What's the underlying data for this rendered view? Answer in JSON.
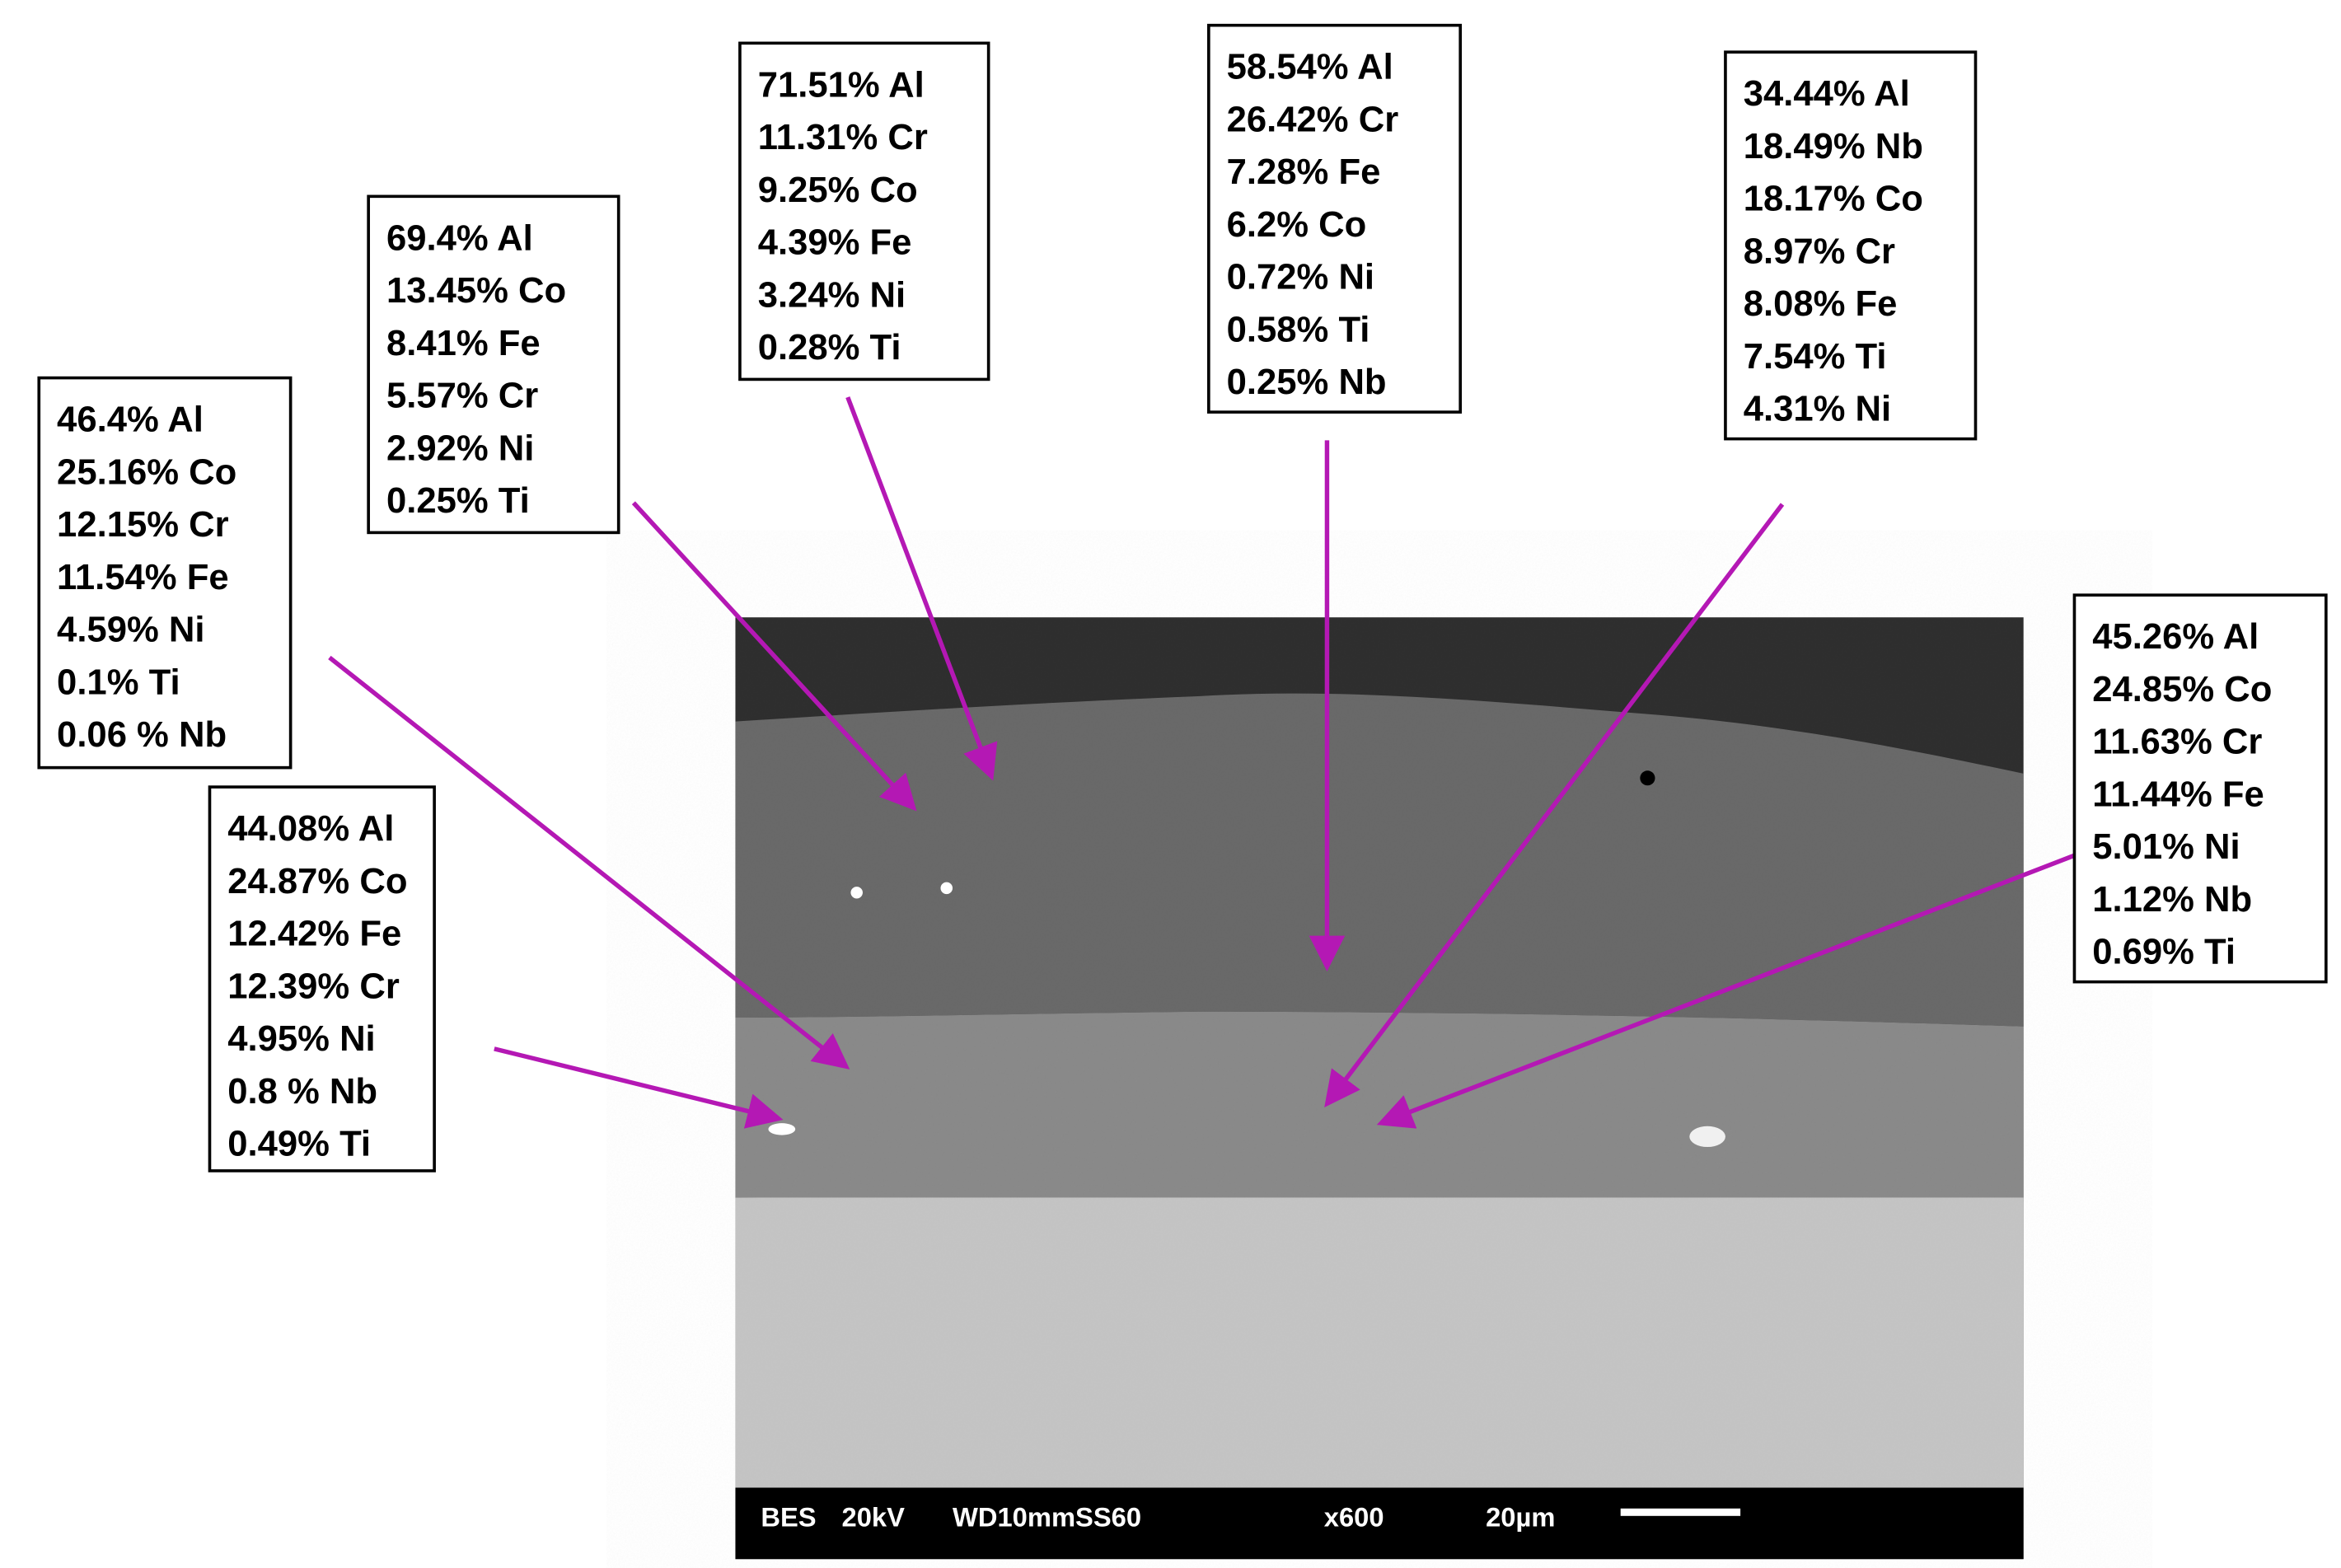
{
  "annotations": [
    {
      "lines": [
        "46.4% Al",
        "25.16% Co",
        "12.15% Cr",
        "11.54% Fe",
        "4.59% Ni",
        "0.1% Ti",
        "0.06 % Nb"
      ]
    },
    {
      "lines": [
        "44.08% Al",
        "24.87% Co",
        "12.42% Fe",
        "12.39% Cr",
        "4.95% Ni",
        "0.8 % Nb",
        "0.49% Ti"
      ]
    },
    {
      "lines": [
        "69.4% Al",
        "13.45% Co",
        "8.41% Fe",
        "5.57% Cr",
        "2.92% Ni",
        "0.25% Ti"
      ]
    },
    {
      "lines": [
        "71.51% Al",
        "11.31% Cr",
        "9.25% Co",
        "4.39% Fe",
        "3.24% Ni",
        "0.28% Ti"
      ]
    },
    {
      "lines": [
        "58.54% Al",
        "26.42% Cr",
        "7.28% Fe",
        "6.2% Co",
        "0.72% Ni",
        "0.58% Ti",
        "0.25% Nb"
      ]
    },
    {
      "lines": [
        "34.44% Al",
        "18.49% Nb",
        "18.17% Co",
        "8.97% Cr",
        "8.08% Fe",
        "7.54% Ti",
        "4.31% Ni"
      ]
    },
    {
      "lines": [
        "45.26% Al",
        "24.85% Co",
        "11.63% Cr",
        "11.44% Fe",
        "5.01% Ni",
        "1.12% Nb",
        "0.69% Ti"
      ]
    }
  ],
  "info_bar": {
    "detector": "BES",
    "voltage": "20kV",
    "settings": "WD10mmSS60",
    "magnification": "x600",
    "scale": "20µm"
  }
}
